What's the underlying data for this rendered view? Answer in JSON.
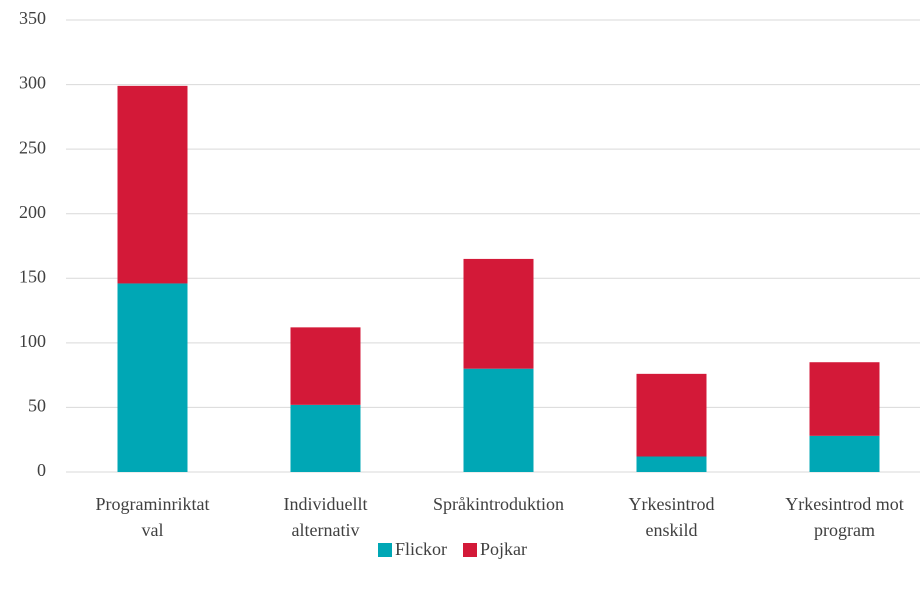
{
  "chart_data": {
    "type": "bar",
    "stacked": true,
    "categories": [
      [
        "Programinriktat",
        "val"
      ],
      [
        "Individuellt",
        "alternativ"
      ],
      [
        "Språkintroduktion"
      ],
      [
        "Yrkesintrod",
        "enskild"
      ],
      [
        "Yrkesintrod mot",
        "program"
      ]
    ],
    "series": [
      {
        "name": "Flickor",
        "color": "#00a7b5",
        "values": [
          146,
          52,
          80,
          12,
          28
        ]
      },
      {
        "name": "Pojkar",
        "color": "#d31938",
        "values": [
          153,
          60,
          85,
          64,
          57
        ]
      }
    ],
    "ylim": [
      0,
      350
    ],
    "yticks": [
      0,
      50,
      100,
      150,
      200,
      250,
      300,
      350
    ],
    "grid": true,
    "legend": "bottom"
  }
}
